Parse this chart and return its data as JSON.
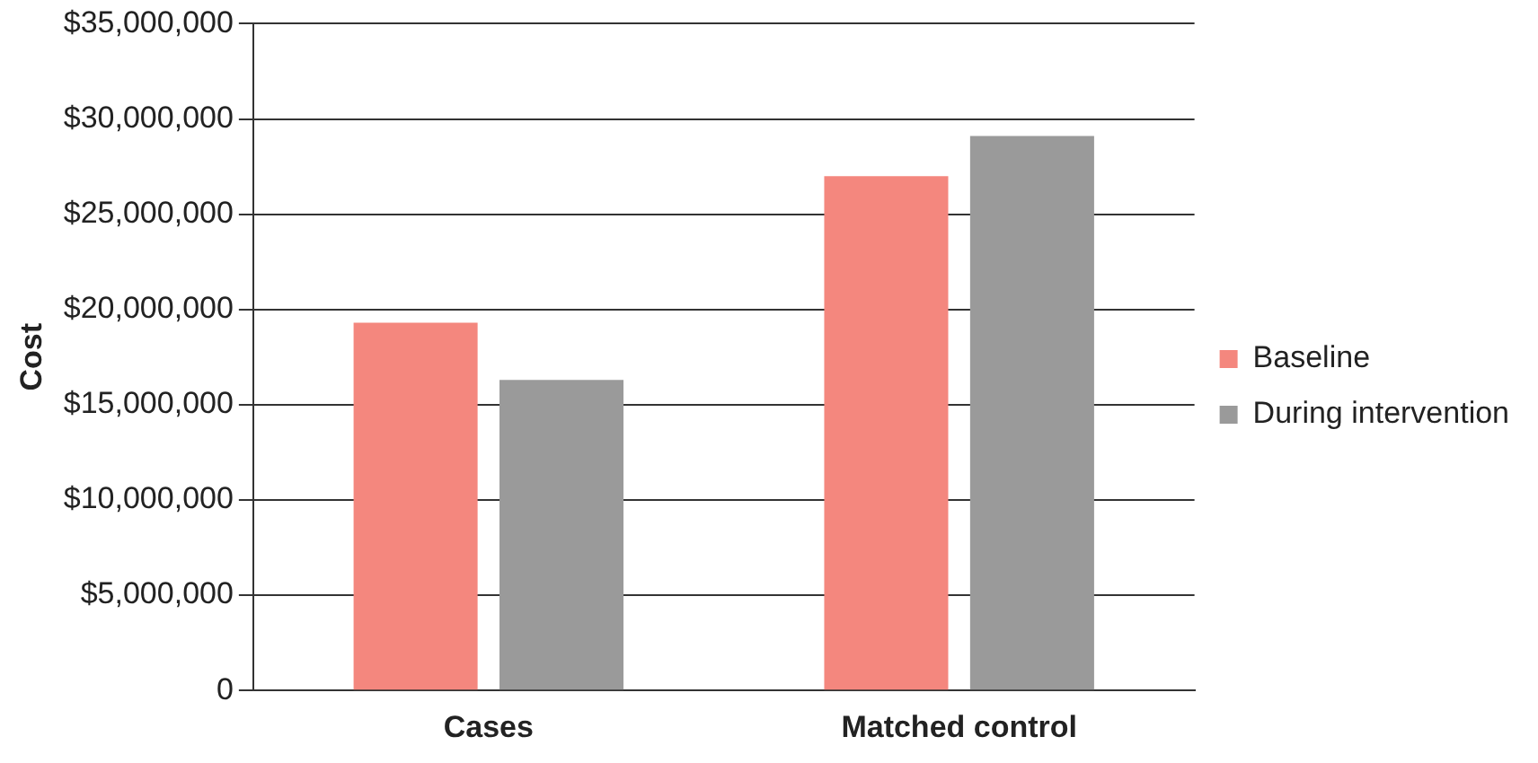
{
  "chart_data": {
    "type": "bar",
    "ylabel": "Cost",
    "categories": [
      "Cases",
      "Matched control"
    ],
    "series": [
      {
        "name": "Baseline",
        "color": "#f4877e",
        "values": [
          19300000,
          27000000
        ]
      },
      {
        "name": "During intervention",
        "color": "#9a9a9a",
        "values": [
          16300000,
          29100000
        ]
      }
    ],
    "ylim": [
      0,
      35000000
    ],
    "yticks": [
      {
        "value": 0,
        "label": "0"
      },
      {
        "value": 5000000,
        "label": "$5,000,000"
      },
      {
        "value": 10000000,
        "label": "$10,000,000"
      },
      {
        "value": 15000000,
        "label": "$15,000,000"
      },
      {
        "value": 20000000,
        "label": "$20,000,000"
      },
      {
        "value": 25000000,
        "label": "$25,000,000"
      },
      {
        "value": 30000000,
        "label": "$30,000,000"
      },
      {
        "value": 35000000,
        "label": "$35,000,000"
      }
    ],
    "grid": "y",
    "legend": "right"
  }
}
